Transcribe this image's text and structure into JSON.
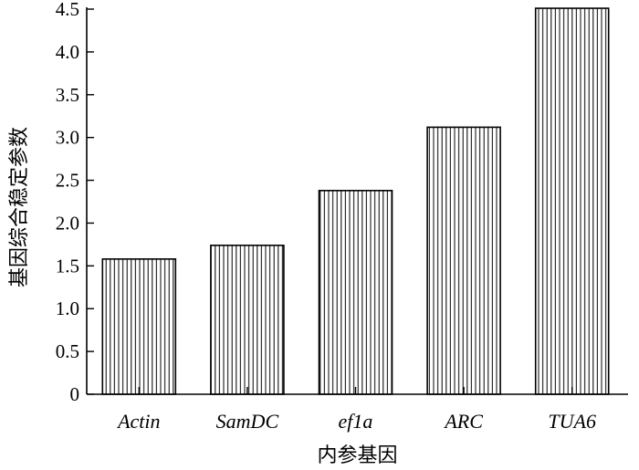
{
  "chart_data": {
    "type": "bar",
    "categories": [
      "Actin",
      "SamDC",
      "ef1a",
      "ARC",
      "TUA6"
    ],
    "values": [
      1.58,
      1.74,
      2.38,
      3.12,
      4.51
    ],
    "xlabel": "内参基因",
    "ylabel": "基因综合稳定参数",
    "ylim": [
      0,
      4.5
    ],
    "yticks": [
      "0",
      "0.5",
      "1.0",
      "1.5",
      "2.0",
      "2.5",
      "3.0",
      "3.5",
      "4.0",
      "4.5"
    ],
    "grid": false,
    "legend": "none",
    "bar_pattern": "vertical-stripes"
  }
}
